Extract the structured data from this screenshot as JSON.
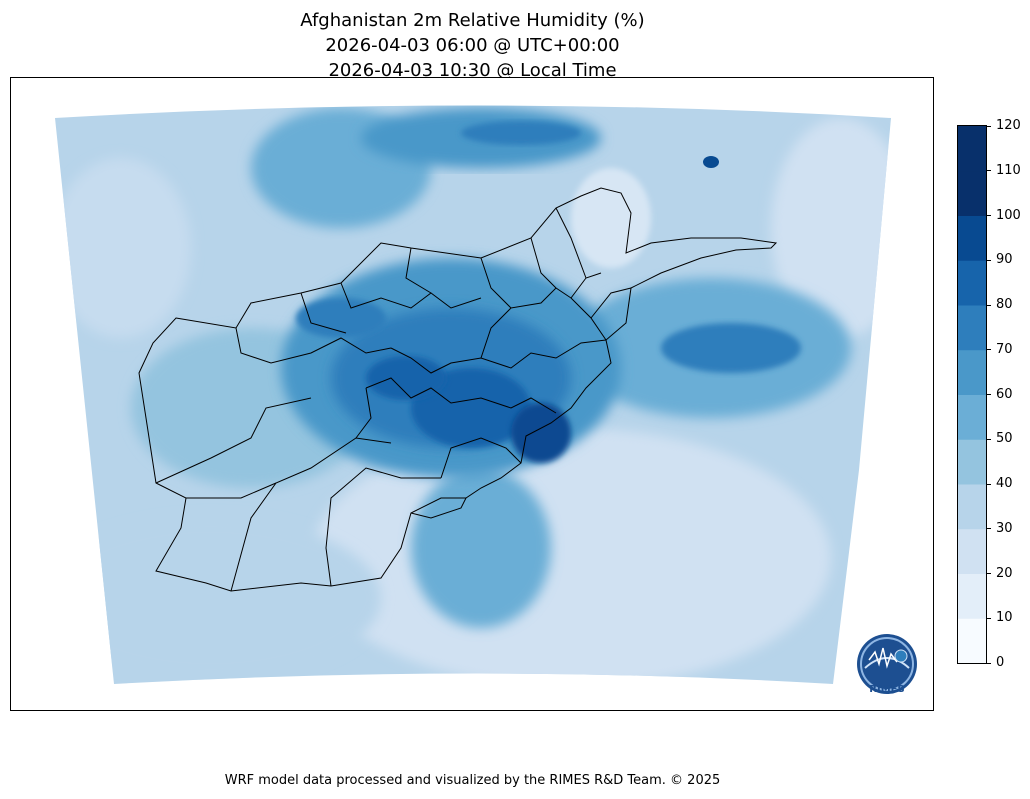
{
  "title": {
    "line1": "Afghanistan 2m Relative Humidity (%)",
    "line2": "2026-04-03 06:00 @ UTC+00:00",
    "line3": "2026-04-03 10:30 @ Local Time"
  },
  "colorbar": {
    "ticks": [
      "0",
      "10",
      "20",
      "30",
      "40",
      "50",
      "60",
      "70",
      "80",
      "90",
      "100",
      "110",
      "120"
    ],
    "colors": [
      "#f7fbff",
      "#e3eef9",
      "#d0e1f2",
      "#b7d4ea",
      "#94c4df",
      "#6baed6",
      "#4a98c9",
      "#2e7ebc",
      "#1764ab",
      "#084a91",
      "#08306b",
      "#08306b"
    ]
  },
  "logo": {
    "name": "rimes-logo",
    "text": "RIMES"
  },
  "footer": "WRF model data processed and visualized by the RIMES R&D Team. © 2025"
}
